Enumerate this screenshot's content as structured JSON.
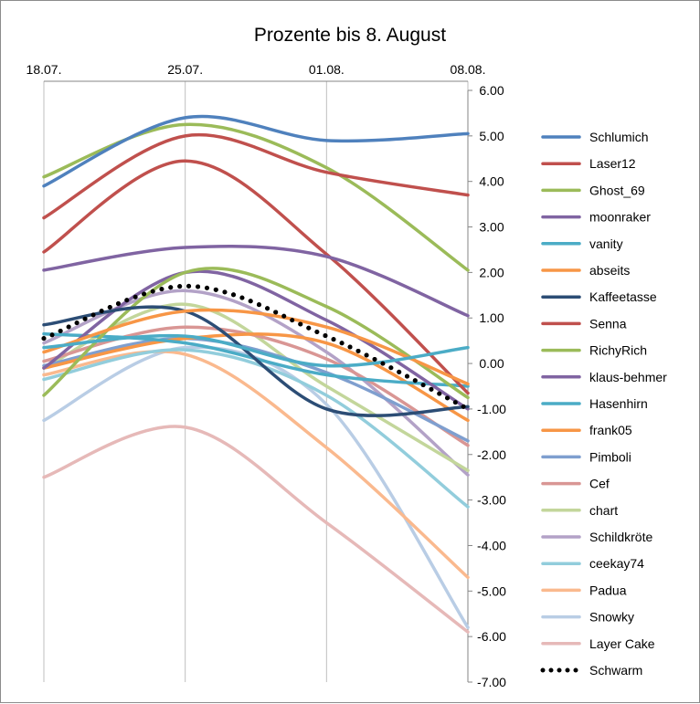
{
  "chart_data": {
    "type": "line",
    "title": "Prozente bis 8. August",
    "x": [
      "18.07.",
      "25.07.",
      "01.08.",
      "08.08."
    ],
    "y_ticks": [
      "6.00",
      "5.00",
      "4.00",
      "3.00",
      "2.00",
      "1.00",
      "0.00",
      "-1.00",
      "-2.00",
      "-3.00",
      "-4.00",
      "-5.00",
      "-6.00",
      "-7.00"
    ],
    "ylim": [
      -7,
      6
    ],
    "y_axis_position": "right",
    "x_axis_position": "top",
    "grid": "vertical",
    "legend_position": "right",
    "series": [
      {
        "name": "Schlumich",
        "color": "#4f81bd",
        "values": [
          3.9,
          5.4,
          4.9,
          5.05
        ]
      },
      {
        "name": "Laser12",
        "color": "#c0504d",
        "values": [
          3.2,
          5.0,
          4.2,
          3.7
        ]
      },
      {
        "name": "Ghost_69",
        "color": "#9bbb59",
        "values": [
          4.1,
          5.25,
          4.3,
          2.05
        ]
      },
      {
        "name": "moonraker",
        "color": "#8064a2",
        "values": [
          2.05,
          2.55,
          2.35,
          1.05
        ]
      },
      {
        "name": "vanity",
        "color": "#4bacc6",
        "values": [
          0.35,
          0.6,
          -0.05,
          0.35
        ]
      },
      {
        "name": "abseits",
        "color": "#f79646",
        "values": [
          0.25,
          1.15,
          0.8,
          -0.45
        ]
      },
      {
        "name": "Kaffeetasse",
        "color": "#2c4d75",
        "values": [
          0.85,
          1.15,
          -1.0,
          -0.95
        ]
      },
      {
        "name": "Senna",
        "color": "#c0504d",
        "values": [
          2.45,
          4.45,
          2.4,
          -0.65
        ]
      },
      {
        "name": "RichyRich",
        "color": "#9bbb59",
        "values": [
          -0.7,
          2.0,
          1.25,
          -0.75
        ]
      },
      {
        "name": "klaus-behmer",
        "color": "#8064a2",
        "values": [
          -0.1,
          2.0,
          0.95,
          -1.0
        ]
      },
      {
        "name": "Hasenhirn",
        "color": "#4bacc6",
        "values": [
          0.65,
          0.45,
          -0.25,
          -0.5
        ]
      },
      {
        "name": "frank05",
        "color": "#f79646",
        "values": [
          -0.1,
          0.55,
          0.45,
          -1.25
        ]
      },
      {
        "name": "Pimboli",
        "color": "#7f9fcf",
        "values": [
          -0.05,
          0.55,
          -0.2,
          -1.7
        ]
      },
      {
        "name": "Cef",
        "color": "#d99694",
        "values": [
          0.05,
          0.8,
          0.1,
          -1.8
        ]
      },
      {
        "name": "chart",
        "color": "#c3d69b",
        "values": [
          -0.1,
          1.3,
          -0.5,
          -2.35
        ]
      },
      {
        "name": "Schildkröte",
        "color": "#b3a2c7",
        "values": [
          0.45,
          1.6,
          0.25,
          -2.45
        ]
      },
      {
        "name": "ceekay74",
        "color": "#92cddc",
        "values": [
          -0.35,
          0.3,
          -0.7,
          -3.15
        ]
      },
      {
        "name": "Padua",
        "color": "#fab98e",
        "values": [
          -0.25,
          0.2,
          -1.85,
          -4.7
        ]
      },
      {
        "name": "Snowky",
        "color": "#b9cde5",
        "values": [
          -1.25,
          0.35,
          -0.9,
          -5.8
        ]
      },
      {
        "name": "Layer Cake",
        "color": "#e6b9b8",
        "values": [
          -2.5,
          -1.4,
          -3.5,
          -5.9
        ]
      },
      {
        "name": "Schwarm",
        "color": "#000000",
        "values": [
          0.55,
          1.7,
          0.6,
          -1.0
        ],
        "dotted": true
      }
    ]
  }
}
